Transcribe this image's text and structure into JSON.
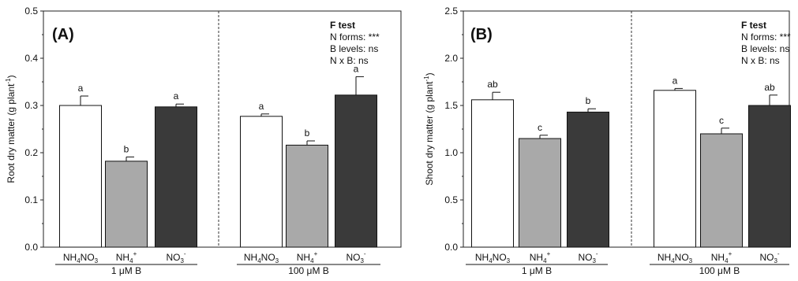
{
  "chart_data": [
    {
      "type": "bar",
      "panel_label": "(A)",
      "ylabel": "Root dry matter (g plant",
      "ylabel_sup": "-1",
      "ylabel_close": ")",
      "ylim": [
        0,
        0.5
      ],
      "yticks": [
        "0.0",
        "0.1",
        "0.2",
        "0.3",
        "0.4",
        "0.5"
      ],
      "ytick_values": [
        0,
        0.1,
        0.2,
        0.3,
        0.4,
        0.5
      ],
      "groups": [
        {
          "label": "1 μM B",
          "bars": [
            {
              "category": "NH4NO3",
              "value": 0.3,
              "error": 0.02,
              "letter": "a",
              "color": "#ffffff"
            },
            {
              "category": "NH4+",
              "value": 0.182,
              "error": 0.009,
              "letter": "b",
              "color": "#aaaaaa"
            },
            {
              "category": "NO3-",
              "value": 0.297,
              "error": 0.006,
              "letter": "a",
              "color": "#3a3a3a"
            }
          ]
        },
        {
          "label": "100 μM B",
          "bars": [
            {
              "category": "NH4NO3",
              "value": 0.277,
              "error": 0.005,
              "letter": "a",
              "color": "#ffffff"
            },
            {
              "category": "NH4+",
              "value": 0.216,
              "error": 0.009,
              "letter": "b",
              "color": "#aaaaaa"
            },
            {
              "category": "NO3-",
              "value": 0.322,
              "error": 0.039,
              "letter": "a",
              "color": "#3a3a3a"
            }
          ]
        }
      ],
      "ftest": {
        "title": "F test",
        "lines": [
          "N forms: ***",
          "B levels: ns",
          "N x B: ns"
        ]
      }
    },
    {
      "type": "bar",
      "panel_label": "(B)",
      "ylabel": "Shoot dry matter (g plant",
      "ylabel_sup": "-1",
      "ylabel_close": ")",
      "ylim": [
        0,
        2.5
      ],
      "yticks": [
        "0.0",
        "0.5",
        "1.0",
        "1.5",
        "2.0",
        "2.5"
      ],
      "ytick_values": [
        0,
        0.5,
        1.0,
        1.5,
        2.0,
        2.5
      ],
      "groups": [
        {
          "label": "1 μM B",
          "bars": [
            {
              "category": "NH4NO3",
              "value": 1.56,
              "error": 0.08,
              "letter": "ab",
              "color": "#ffffff"
            },
            {
              "category": "NH4+",
              "value": 1.15,
              "error": 0.035,
              "letter": "c",
              "color": "#aaaaaa"
            },
            {
              "category": "NO3-",
              "value": 1.43,
              "error": 0.035,
              "letter": "b",
              "color": "#3a3a3a"
            }
          ]
        },
        {
          "label": "100 μM B",
          "bars": [
            {
              "category": "NH4NO3",
              "value": 1.66,
              "error": 0.02,
              "letter": "a",
              "color": "#ffffff"
            },
            {
              "category": "NH4+",
              "value": 1.2,
              "error": 0.06,
              "letter": "c",
              "color": "#aaaaaa"
            },
            {
              "category": "NO3-",
              "value": 1.5,
              "error": 0.11,
              "letter": "ab",
              "color": "#3a3a3a"
            }
          ]
        }
      ],
      "ftest": {
        "title": "F test",
        "lines": [
          "N forms: ***",
          "B levels: ns",
          "N x B: ns"
        ]
      }
    }
  ]
}
